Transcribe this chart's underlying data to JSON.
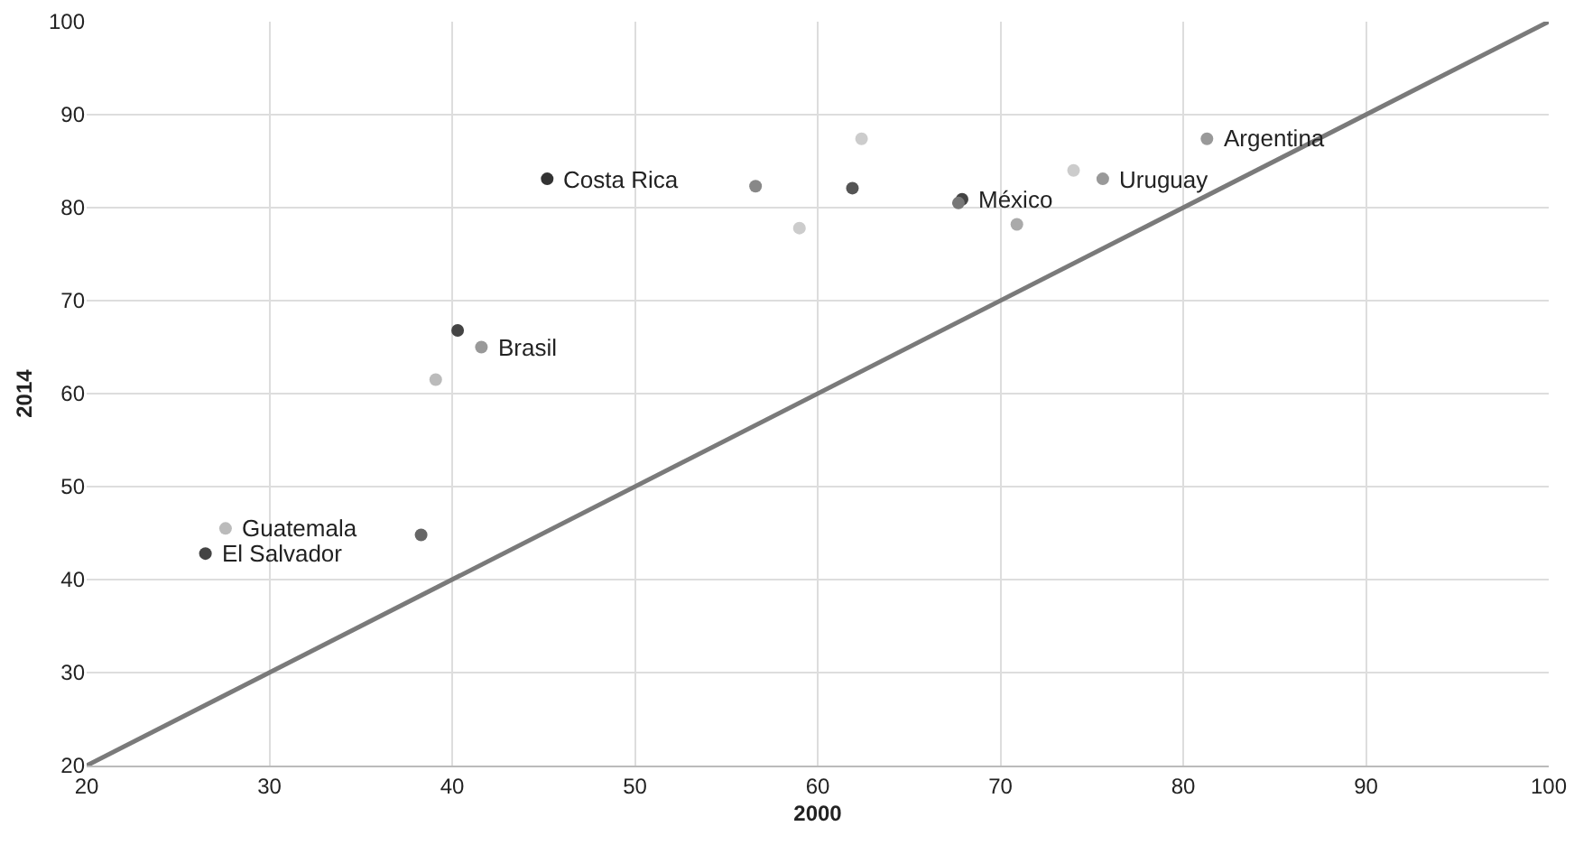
{
  "chart_data": {
    "type": "scatter",
    "xlabel": "2000",
    "ylabel": "2014",
    "xlim": [
      20,
      100
    ],
    "xticks": [
      20,
      30,
      40,
      50,
      60,
      70,
      80,
      90,
      100
    ],
    "ylim": [
      20,
      100
    ],
    "yticks": [
      20,
      30,
      40,
      50,
      60,
      70,
      80,
      90,
      100
    ],
    "grid": true,
    "marker": "circle",
    "series": [
      {
        "type": "line",
        "color": "#7a7a7a",
        "x": [
          20,
          100
        ],
        "values": [
          20,
          100
        ],
        "marker": "none",
        "line_style": "solid"
      },
      {
        "x": [
          26.5,
          27.6,
          38.3,
          40.3,
          41.6,
          39.1,
          45.2,
          56.6,
          62.4,
          59.0,
          61.9,
          67.9,
          67.7,
          70.9,
          74.0,
          75.6,
          81.3
        ],
        "values": [
          42.8,
          45.5,
          44.8,
          66.8,
          65.0,
          61.5,
          83.1,
          82.3,
          87.4,
          77.8,
          82.1,
          80.9,
          80.5,
          78.2,
          84.0,
          83.1,
          87.4
        ],
        "colors": [
          "#444444",
          "#bbbbbb",
          "#666666",
          "#444444",
          "#999999",
          "#bbbbbb",
          "#333333",
          "#888888",
          "#cccccc",
          "#cccccc",
          "#555555",
          "#444444",
          "#777777",
          "#aaaaaa",
          "#cccccc",
          "#999999",
          "#999999"
        ]
      }
    ],
    "annotations": [
      {
        "text": "El Salvador",
        "x": 26.5,
        "y": 42.8
      },
      {
        "text": "Guatemala",
        "x": 27.6,
        "y": 45.5
      },
      {
        "text": "Brasil",
        "x": 41.6,
        "y": 65.0
      },
      {
        "text": "Costa Rica",
        "x": 45.2,
        "y": 83.1
      },
      {
        "text": "México",
        "x": 67.9,
        "y": 80.9
      },
      {
        "text": "Uruguay",
        "x": 75.6,
        "y": 83.1
      },
      {
        "text": "Argentina",
        "x": 81.3,
        "y": 87.4
      }
    ]
  }
}
